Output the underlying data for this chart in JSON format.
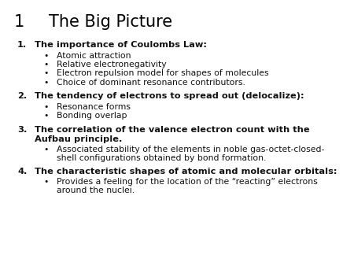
{
  "title_number": "1",
  "title_text": "The Big Picture",
  "background_color": "#ffffff",
  "title_fontsize": 15,
  "title_color": "#000000",
  "sections": [
    {
      "number": "1.",
      "heading": "The importance of Coulombs Law:",
      "heading_lines": 1,
      "bullets": [
        "Atomic attraction",
        "Relative electronegativity",
        "Electron repulsion model for shapes of molecules",
        "Choice of dominant resonance contributors."
      ],
      "bullet_lines": [
        1,
        1,
        1,
        1
      ]
    },
    {
      "number": "2.",
      "heading": "The tendency of electrons to spread out (delocalize):",
      "heading_lines": 1,
      "bullets": [
        "Resonance forms",
        "Bonding overlap"
      ],
      "bullet_lines": [
        1,
        1
      ]
    },
    {
      "number": "3.",
      "heading": "The correlation of the valence electron count with the\nAufbau principle.",
      "heading_lines": 2,
      "bullets": [
        "Associated stability of the elements in noble gas-octet-closed-\nshell configurations obtained by bond formation."
      ],
      "bullet_lines": [
        2
      ]
    },
    {
      "number": "4.",
      "heading": "The characteristic shapes of atomic and molecular orbitals:",
      "heading_lines": 1,
      "bullets": [
        "Provides a feeling for the location of the “reacting” electrons\naround the nuclei."
      ],
      "bullet_lines": [
        2
      ]
    }
  ],
  "heading_fontsize": 8.2,
  "bullet_fontsize": 7.8,
  "text_color": "#111111"
}
